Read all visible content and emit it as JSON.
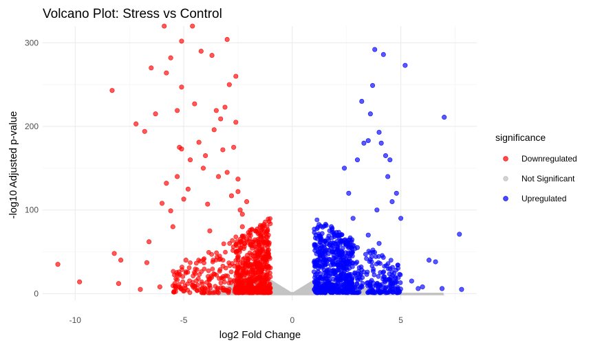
{
  "chart_data": {
    "type": "scatter",
    "title": "Volcano Plot: Stress vs Control",
    "xlabel": "log2 Fold Change",
    "ylabel": "-log10 Adjusted p-value",
    "xlim": [
      -11.5,
      8.5
    ],
    "ylim": [
      -8,
      320
    ],
    "x_ticks": [
      -10,
      -5,
      0,
      5
    ],
    "x_tick_labels": [
      "-10",
      "-5",
      "0",
      "5"
    ],
    "y_ticks": [
      0,
      100,
      200,
      300
    ],
    "y_tick_labels": [
      "0",
      "100",
      "200",
      "300"
    ],
    "grid": true,
    "legend": {
      "title": "significance",
      "position": "right",
      "entries": [
        {
          "label": "Downregulated",
          "color": "#ff0000"
        },
        {
          "label": "Not Significant",
          "color": "#bebebe"
        },
        {
          "label": "Upregulated",
          "color": "#0000ff"
        }
      ]
    },
    "series": [
      {
        "name": "Downregulated",
        "color": "#ff0000",
        "points": [
          [
            -10.8,
            35
          ],
          [
            -9.8,
            14
          ],
          [
            -8.3,
            243
          ],
          [
            -8.2,
            48
          ],
          [
            -8.0,
            12
          ],
          [
            -7.9,
            40
          ],
          [
            -7.2,
            203
          ],
          [
            -7.0,
            5
          ],
          [
            -6.8,
            194
          ],
          [
            -6.7,
            37
          ],
          [
            -6.6,
            62
          ],
          [
            -6.5,
            270
          ],
          [
            -6.3,
            215
          ],
          [
            -6.1,
            8
          ],
          [
            -6.0,
            108
          ],
          [
            -5.8,
            132
          ],
          [
            -5.8,
            264
          ],
          [
            -5.6,
            99
          ],
          [
            -5.5,
            80
          ],
          [
            -5.3,
            140
          ],
          [
            -5.3,
            219
          ],
          [
            -5.2,
            175
          ],
          [
            -5.1,
            247
          ],
          [
            -5.1,
            173
          ],
          [
            -5.0,
            113
          ],
          [
            -4.9,
            40
          ],
          [
            -4.8,
            125
          ],
          [
            -4.7,
            160
          ],
          [
            -4.5,
            227
          ],
          [
            -4.3,
            181
          ],
          [
            -4.2,
            290
          ],
          [
            -4.1,
            150
          ],
          [
            -4.0,
            165
          ],
          [
            -3.9,
            107
          ],
          [
            -3.8,
            75
          ],
          [
            -3.7,
            285
          ],
          [
            -3.6,
            196
          ],
          [
            -3.5,
            219
          ],
          [
            -3.4,
            140
          ],
          [
            -3.3,
            209
          ],
          [
            -3.2,
            172
          ],
          [
            -3.1,
            223
          ],
          [
            -3.0,
            304
          ],
          [
            -3.0,
            145
          ],
          [
            -2.9,
            250
          ],
          [
            -2.8,
            117
          ],
          [
            -2.7,
            175
          ],
          [
            -2.6,
            260
          ],
          [
            -2.6,
            205
          ],
          [
            -2.5,
            122
          ],
          [
            -2.5,
            137
          ],
          [
            -2.4,
            100
          ],
          [
            -2.3,
            80
          ],
          [
            -2.3,
            95
          ],
          [
            -2.2,
            60
          ],
          [
            -2.1,
            110
          ],
          [
            -2.0,
            70
          ],
          [
            -1.9,
            58
          ],
          [
            -1.8,
            45
          ],
          [
            -1.7,
            75
          ],
          [
            -1.6,
            32
          ],
          [
            -1.5,
            20
          ],
          [
            -1.4,
            28
          ],
          [
            -1.3,
            12
          ],
          [
            -1.2,
            22
          ],
          [
            -1.1,
            8
          ],
          [
            -5.9,
            320
          ],
          [
            -5.1,
            302
          ],
          [
            -5.6,
            282
          ],
          [
            -4.6,
            320
          ]
        ]
      },
      {
        "name": "Not Significant",
        "color": "#bebebe",
        "points": [
          [
            -2.5,
            -2
          ],
          [
            -2.0,
            3
          ],
          [
            -1.5,
            8
          ],
          [
            -1.2,
            12
          ],
          [
            -1.0,
            18
          ],
          [
            -0.8,
            20
          ],
          [
            -0.6,
            14
          ],
          [
            -0.4,
            9
          ],
          [
            -0.2,
            5
          ],
          [
            0.0,
            2
          ],
          [
            0.2,
            5
          ],
          [
            0.4,
            9
          ],
          [
            0.6,
            13
          ],
          [
            0.8,
            18
          ],
          [
            1.0,
            20
          ],
          [
            1.5,
            2
          ],
          [
            2.5,
            1
          ],
          [
            3.5,
            0
          ],
          [
            4.5,
            0
          ],
          [
            5.5,
            1
          ],
          [
            6.5,
            2
          ]
        ]
      },
      {
        "name": "Upregulated",
        "color": "#0000ff",
        "points": [
          [
            3.2,
            230
          ],
          [
            3.5,
            183
          ],
          [
            3.6,
            215
          ],
          [
            3.7,
            249
          ],
          [
            3.8,
            292
          ],
          [
            3.9,
            100
          ],
          [
            4.0,
            193
          ],
          [
            4.1,
            180
          ],
          [
            4.2,
            286
          ],
          [
            4.3,
            165
          ],
          [
            4.4,
            140
          ],
          [
            4.5,
            160
          ],
          [
            4.6,
            110
          ],
          [
            4.8,
            120
          ],
          [
            5.2,
            273
          ],
          [
            5.0,
            90
          ],
          [
            7.0,
            211
          ],
          [
            7.7,
            71
          ],
          [
            7.8,
            5
          ],
          [
            6.3,
            40
          ],
          [
            6.6,
            38
          ],
          [
            6.9,
            6
          ],
          [
            5.8,
            6
          ],
          [
            2.4,
            150
          ],
          [
            2.6,
            120
          ],
          [
            2.8,
            90
          ],
          [
            3.0,
            160
          ],
          [
            3.3,
            180
          ],
          [
            1.6,
            60
          ],
          [
            1.8,
            80
          ],
          [
            2.0,
            50
          ],
          [
            2.2,
            70
          ],
          [
            2.5,
            40
          ],
          [
            1.2,
            30
          ],
          [
            1.4,
            20
          ],
          [
            1.1,
            10
          ],
          [
            3.0,
            55
          ],
          [
            3.5,
            70
          ],
          [
            4.0,
            60
          ],
          [
            4.5,
            30
          ],
          [
            5.5,
            15
          ],
          [
            6.0,
            8
          ]
        ]
      }
    ]
  }
}
